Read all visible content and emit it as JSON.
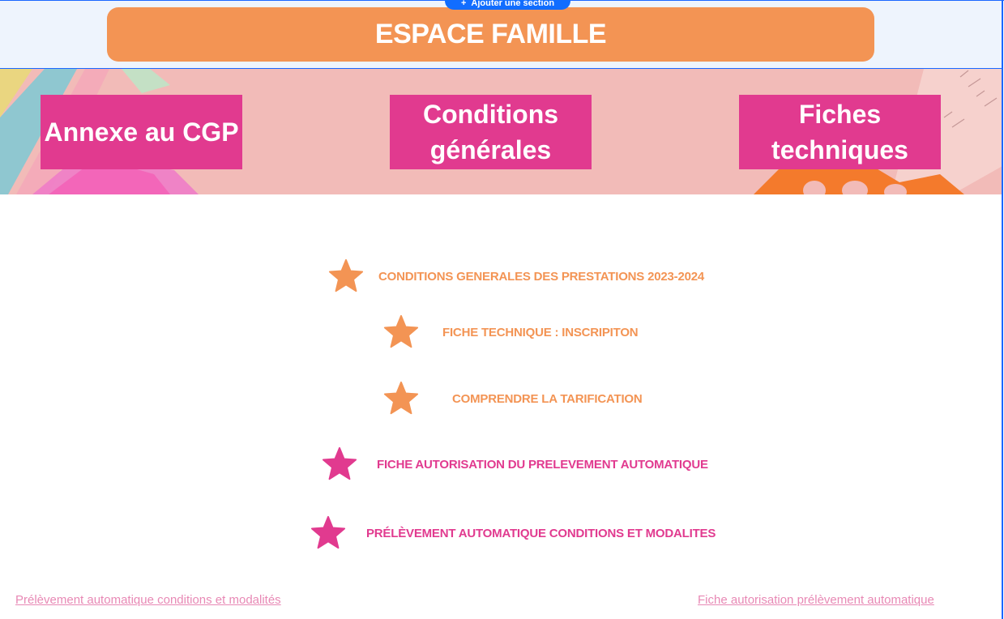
{
  "editor": {
    "add_section_label": "Ajouter une section",
    "add_section_icon": "+"
  },
  "header": {
    "title": "ESPACE FAMILLE"
  },
  "nav": {
    "items": [
      {
        "label": "Annexe au CGP"
      },
      {
        "label": "Conditions générales"
      },
      {
        "label": "Fiches techniques"
      }
    ]
  },
  "documents": [
    {
      "label": "CONDITIONS GENERALES DES PRESTATIONS 2023-2024",
      "color": "#f39454",
      "icon": "star-icon"
    },
    {
      "label": "FICHE TECHNIQUE : INSCRIPITON",
      "color": "#f39454",
      "icon": "star-icon"
    },
    {
      "label": "COMPRENDRE LA TARIFICATION",
      "color": "#f39454",
      "icon": "star-icon"
    },
    {
      "label": "FICHE AUTORISATION DU PRELEVEMENT AUTOMATIQUE",
      "color": "#e13a8f",
      "icon": "star-icon"
    },
    {
      "label": "PRÉLÈVEMENT AUTOMATIQUE CONDITIONS ET MODALITES",
      "color": "#e13a8f",
      "icon": "star-icon"
    }
  ],
  "footer": {
    "left_link": "Prélèvement automatique conditions et modalités",
    "right_link": "Fiche autorisation prélèvement automatique"
  },
  "colors": {
    "accent_orange": "#f39454",
    "accent_pink": "#e13a8f",
    "editor_blue": "#116dff"
  }
}
